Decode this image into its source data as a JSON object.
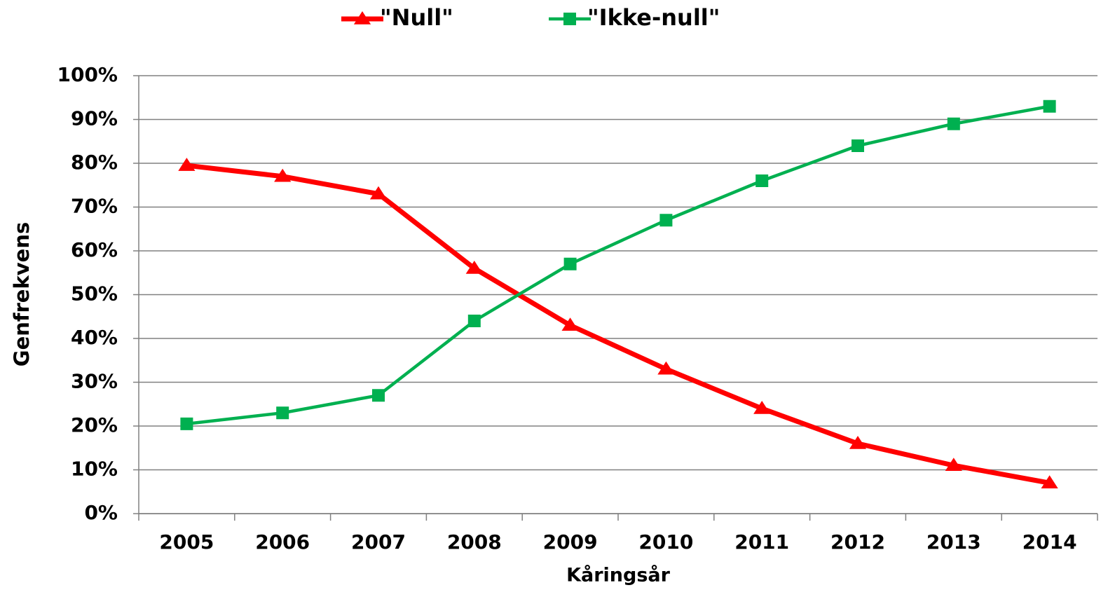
{
  "chart_data": {
    "type": "line",
    "xlabel": "Kåringsår",
    "ylabel": "Genfrekvens",
    "categories": [
      "2005",
      "2006",
      "2007",
      "2008",
      "2009",
      "2010",
      "2011",
      "2012",
      "2013",
      "2014"
    ],
    "series": [
      {
        "name": "\"Null\"",
        "color": "#ff0000",
        "marker": "triangle",
        "values": [
          79.5,
          77,
          73,
          56,
          43,
          33,
          24,
          16,
          11,
          7
        ]
      },
      {
        "name": "\"Ikke-null\"",
        "color": "#00b050",
        "marker": "square",
        "values": [
          20.5,
          23,
          27,
          44,
          57,
          67,
          76,
          84,
          89,
          93
        ]
      }
    ],
    "ylim": [
      0,
      100
    ],
    "yticks": [
      {
        "value": 0,
        "label": "0%"
      },
      {
        "value": 10,
        "label": "10%"
      },
      {
        "value": 20,
        "label": "20%"
      },
      {
        "value": 30,
        "label": "30%"
      },
      {
        "value": 40,
        "label": "40%"
      },
      {
        "value": 50,
        "label": "50%"
      },
      {
        "value": 60,
        "label": "60%"
      },
      {
        "value": 70,
        "label": "70%"
      },
      {
        "value": 80,
        "label": "80%"
      },
      {
        "value": 90,
        "label": "90%"
      },
      {
        "value": 100,
        "label": "100%"
      }
    ],
    "grid": true,
    "legend": "top"
  }
}
